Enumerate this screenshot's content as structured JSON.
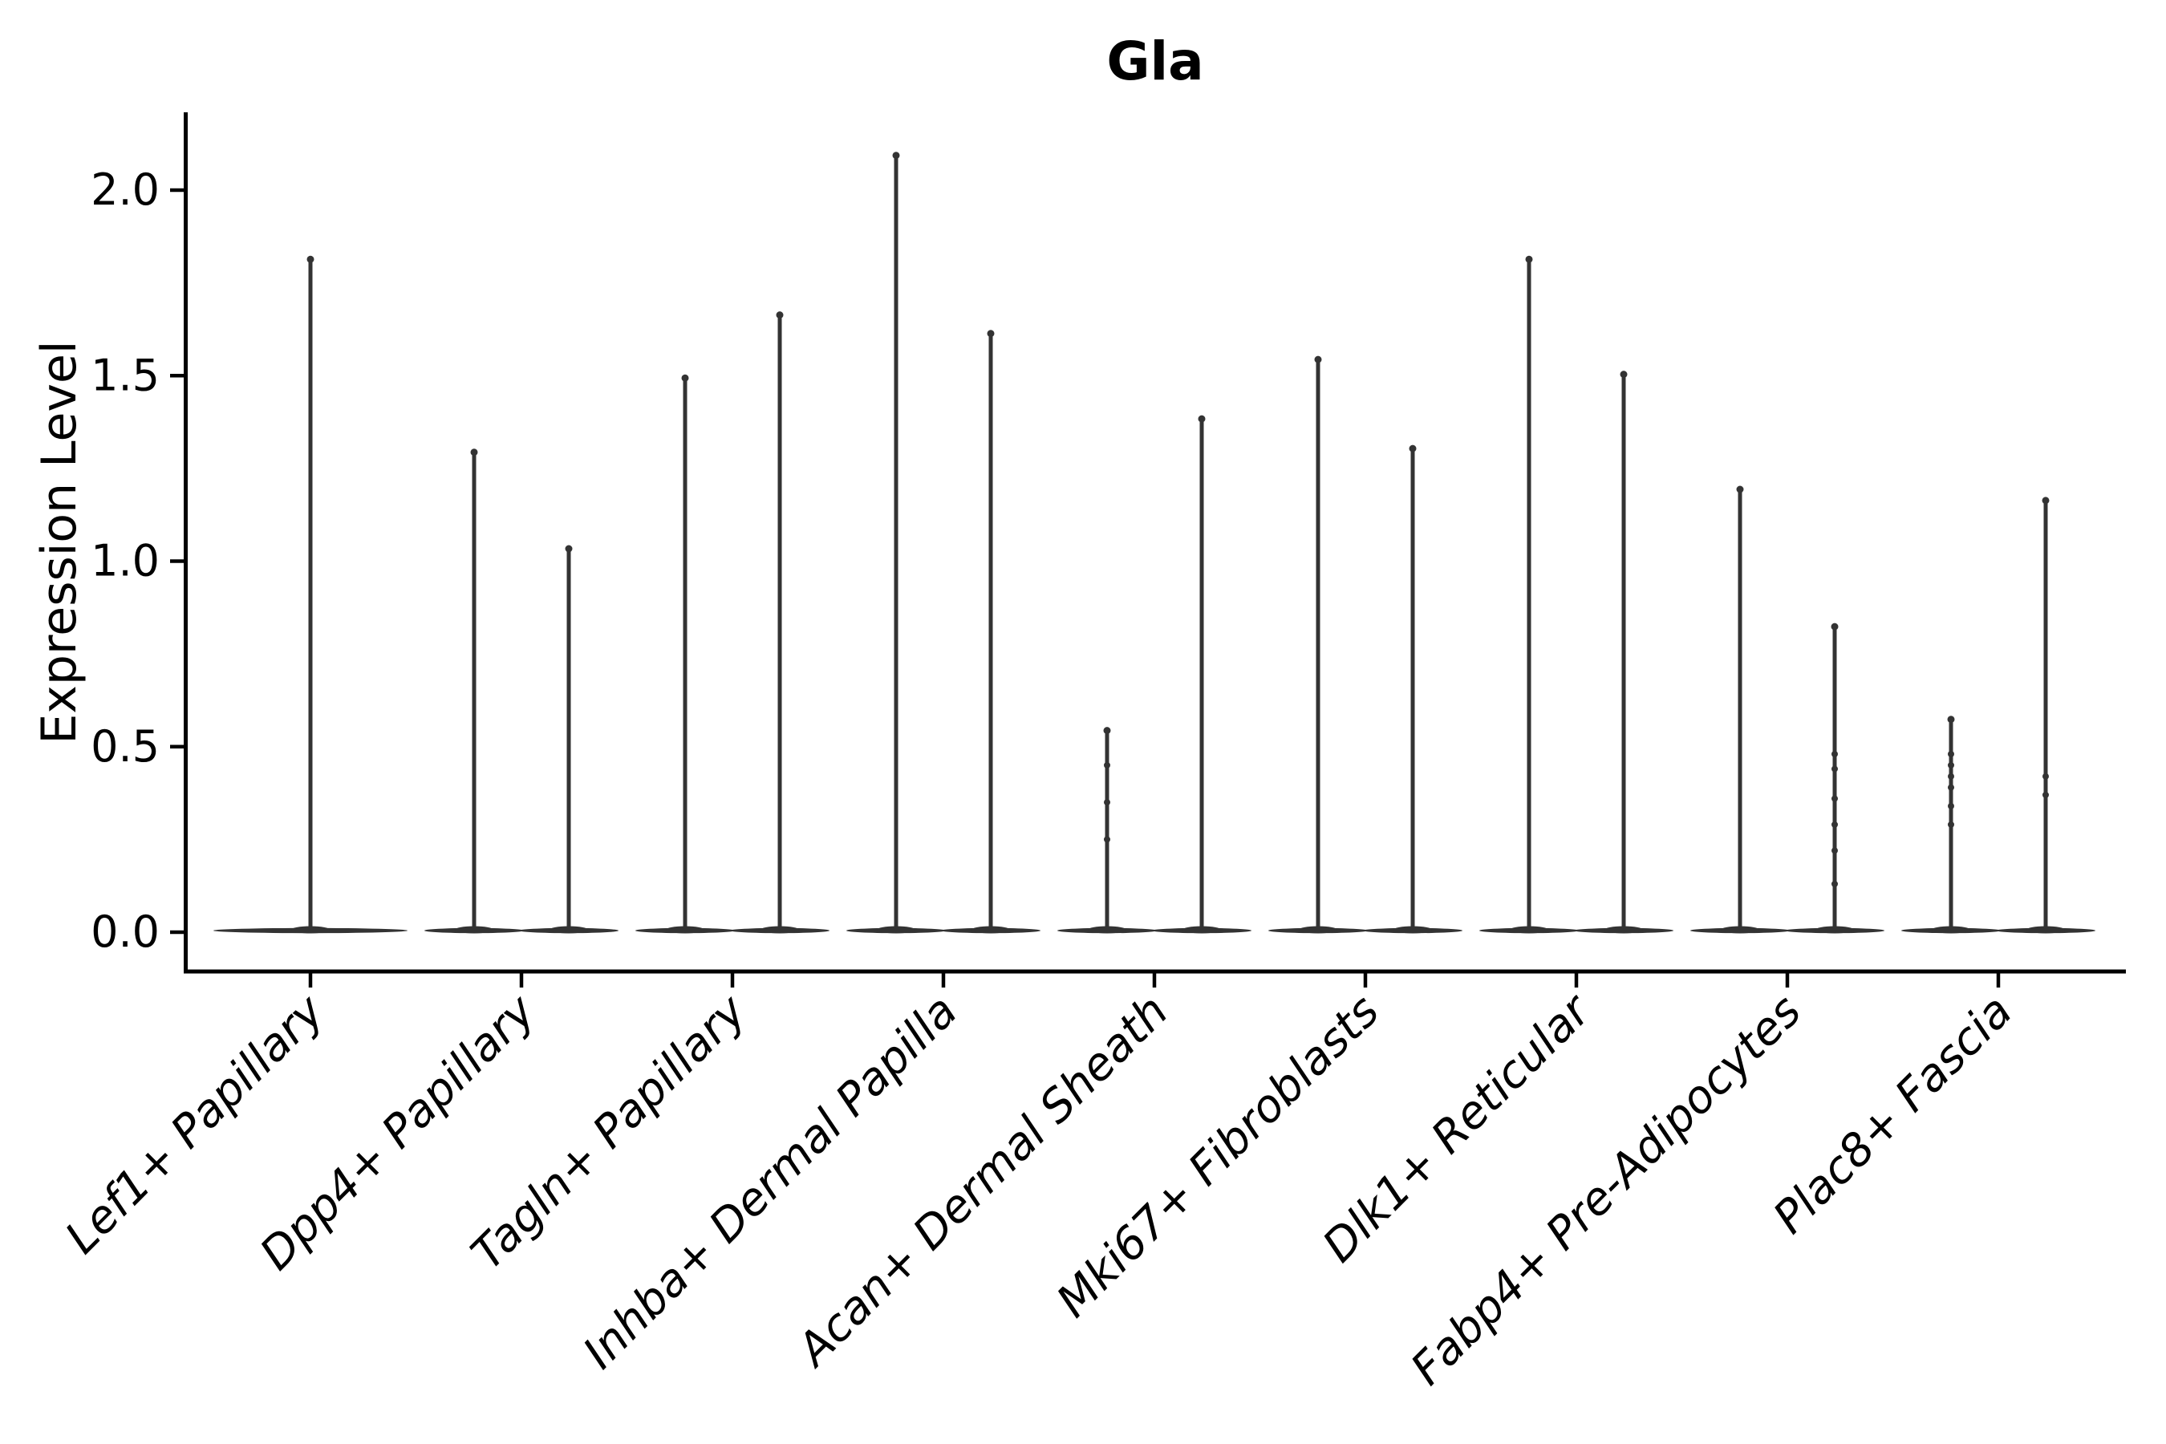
{
  "chart_data": {
    "type": "violin",
    "title": "Gla",
    "xlabel": "",
    "ylabel": "Expression Level",
    "yticks": [
      "0.0",
      "0.5",
      "1.0",
      "1.5",
      "2.0"
    ],
    "ylim": [
      -0.11,
      2.21
    ],
    "grid": false,
    "legend": "none",
    "categories": [
      "Lef1+ Papillary",
      "Dpp4+ Papillary",
      "Tagln+ Papillary",
      "Inhba+ Dermal Papilla",
      "Acan+ Dermal Sheath",
      "Mki67+ Fibroblasts",
      "Dlk1+ Reticular",
      "Fabp4+ Pre-Adipocytes",
      "Plac8+ Fascia"
    ],
    "style": {
      "violin_color": "#333333",
      "axis_color": "#000000",
      "background": "#ffffff",
      "x_labels_italic": true,
      "x_labels_rotation_deg": 45
    },
    "violins": [
      {
        "category": "Lef1+ Papillary",
        "dodge": 0,
        "min": 0.0,
        "max": 1.82,
        "dots": []
      },
      {
        "category": "Dpp4+ Papillary",
        "dodge": -1,
        "min": 0.0,
        "max": 1.3,
        "dots": []
      },
      {
        "category": "Dpp4+ Papillary",
        "dodge": 1,
        "min": 0.0,
        "max": 1.04,
        "dots": []
      },
      {
        "category": "Tagln+ Papillary",
        "dodge": -1,
        "min": 0.0,
        "max": 1.5,
        "dots": []
      },
      {
        "category": "Tagln+ Papillary",
        "dodge": 1,
        "min": 0.0,
        "max": 1.67,
        "dots": []
      },
      {
        "category": "Inhba+ Dermal Papilla",
        "dodge": -1,
        "min": 0.0,
        "max": 2.1,
        "dots": []
      },
      {
        "category": "Inhba+ Dermal Papilla",
        "dodge": 1,
        "min": 0.0,
        "max": 1.62,
        "dots": []
      },
      {
        "category": "Acan+ Dermal Sheath",
        "dodge": -1,
        "min": 0.0,
        "max": 0.55,
        "dots": [
          0.45,
          0.35,
          0.25
        ]
      },
      {
        "category": "Acan+ Dermal Sheath",
        "dodge": 1,
        "min": 0.0,
        "max": 1.39,
        "dots": []
      },
      {
        "category": "Mki67+ Fibroblasts",
        "dodge": -1,
        "min": 0.0,
        "max": 1.55,
        "dots": []
      },
      {
        "category": "Mki67+ Fibroblasts",
        "dodge": 1,
        "min": 0.0,
        "max": 1.31,
        "dots": []
      },
      {
        "category": "Dlk1+ Reticular",
        "dodge": -1,
        "min": 0.0,
        "max": 1.82,
        "dots": []
      },
      {
        "category": "Dlk1+ Reticular",
        "dodge": 1,
        "min": 0.0,
        "max": 1.51,
        "dots": []
      },
      {
        "category": "Fabp4+ Pre-Adipocytes",
        "dodge": -1,
        "min": 0.0,
        "max": 1.2,
        "dots": []
      },
      {
        "category": "Fabp4+ Pre-Adipocytes",
        "dodge": 1,
        "min": 0.0,
        "max": 0.83,
        "dots": [
          0.48,
          0.44,
          0.36,
          0.29,
          0.22,
          0.13
        ]
      },
      {
        "category": "Plac8+ Fascia",
        "dodge": -1,
        "min": 0.0,
        "max": 0.58,
        "dots": [
          0.48,
          0.45,
          0.42,
          0.39,
          0.34,
          0.29
        ]
      },
      {
        "category": "Plac8+ Fascia",
        "dodge": 1,
        "min": 0.0,
        "max": 1.17,
        "dots": [
          0.42,
          0.37
        ]
      }
    ]
  }
}
